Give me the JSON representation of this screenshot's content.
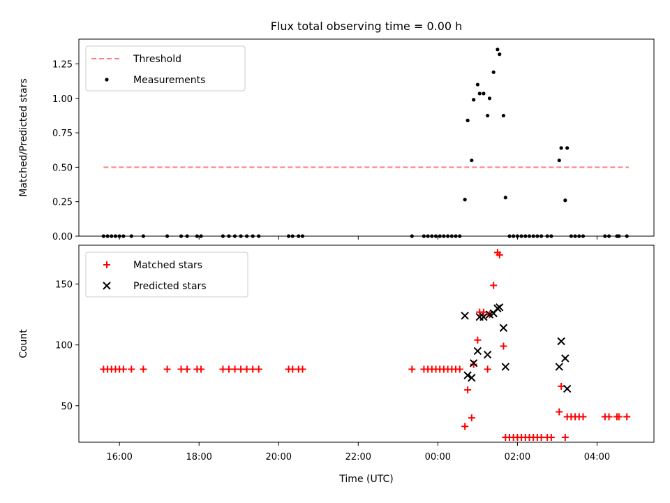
{
  "chart_data": {
    "title": "Flux total observing time = 0.00 h",
    "xlabel": "Time (UTC)",
    "x_ticks": [
      "16:00",
      "18:00",
      "20:00",
      "22:00",
      "00:00",
      "02:00",
      "04:00"
    ],
    "x_tick_hours": [
      16,
      18,
      20,
      22,
      24,
      26,
      28
    ],
    "xlim_hours": [
      14.98,
      29.43
    ],
    "panels": [
      {
        "type": "scatter",
        "ylabel": "Matched/Predicted stars",
        "ylim": [
          0,
          1.43
        ],
        "y_ticks": [
          "0.00",
          "0.25",
          "0.50",
          "0.75",
          "1.00",
          "1.25"
        ],
        "y_tick_values": [
          0,
          0.25,
          0.5,
          0.75,
          1.0,
          1.25
        ],
        "legend_position": "upper-left",
        "series": [
          {
            "name": "Threshold",
            "kind": "dashed-line",
            "color": "#ff7f7f",
            "points": [
              [
                15.6,
                0.5
              ],
              [
                28.8,
                0.5
              ]
            ]
          },
          {
            "name": "Measurements",
            "kind": "dot",
            "color": "#000000",
            "points": [
              [
                15.6,
                0
              ],
              [
                15.7,
                0
              ],
              [
                15.8,
                0
              ],
              [
                15.9,
                0
              ],
              [
                16.0,
                0
              ],
              [
                16.1,
                0
              ],
              [
                16.3,
                0
              ],
              [
                16.6,
                0
              ],
              [
                17.2,
                0
              ],
              [
                17.55,
                0
              ],
              [
                17.7,
                0
              ],
              [
                17.95,
                0
              ],
              [
                18.05,
                0
              ],
              [
                18.6,
                0
              ],
              [
                18.75,
                0
              ],
              [
                18.9,
                0
              ],
              [
                19.05,
                0
              ],
              [
                19.2,
                0
              ],
              [
                19.35,
                0
              ],
              [
                19.5,
                0
              ],
              [
                20.25,
                0
              ],
              [
                20.35,
                0
              ],
              [
                20.5,
                0
              ],
              [
                20.6,
                0
              ],
              [
                23.35,
                0
              ],
              [
                23.65,
                0
              ],
              [
                23.75,
                0
              ],
              [
                23.85,
                0
              ],
              [
                23.95,
                0
              ],
              [
                24.05,
                0
              ],
              [
                24.15,
                0
              ],
              [
                24.25,
                0
              ],
              [
                24.35,
                0
              ],
              [
                24.45,
                0
              ],
              [
                24.55,
                0
              ],
              [
                24.68,
                0.265
              ],
              [
                24.75,
                0.84
              ],
              [
                24.85,
                0.55
              ],
              [
                24.9,
                0.99
              ],
              [
                25.0,
                1.1
              ],
              [
                25.05,
                1.035
              ],
              [
                25.15,
                1.035
              ],
              [
                25.25,
                0.875
              ],
              [
                25.3,
                1.0
              ],
              [
                25.4,
                1.19
              ],
              [
                25.5,
                1.355
              ],
              [
                25.55,
                1.32
              ],
              [
                25.65,
                0.875
              ],
              [
                25.7,
                0.28
              ],
              [
                25.8,
                0
              ],
              [
                25.9,
                0
              ],
              [
                26.0,
                0
              ],
              [
                26.1,
                0
              ],
              [
                26.2,
                0
              ],
              [
                26.3,
                0
              ],
              [
                26.4,
                0
              ],
              [
                26.5,
                0
              ],
              [
                26.6,
                0
              ],
              [
                26.75,
                0
              ],
              [
                26.85,
                0
              ],
              [
                27.05,
                0.55
              ],
              [
                27.1,
                0.64
              ],
              [
                27.2,
                0.26
              ],
              [
                27.25,
                0.64
              ],
              [
                27.35,
                0
              ],
              [
                27.45,
                0
              ],
              [
                27.55,
                0
              ],
              [
                27.65,
                0
              ],
              [
                28.2,
                0
              ],
              [
                28.3,
                0
              ],
              [
                28.5,
                0
              ],
              [
                28.55,
                0
              ],
              [
                28.75,
                0
              ]
            ]
          }
        ]
      },
      {
        "type": "scatter",
        "ylabel": "Count",
        "ylim": [
          20,
          182
        ],
        "y_ticks": [
          "50",
          "100",
          "150"
        ],
        "y_tick_values": [
          50,
          100,
          150
        ],
        "legend_position": "upper-left",
        "series": [
          {
            "name": "Matched stars",
            "kind": "plus",
            "color": "#ff0000",
            "points": [
              [
                15.6,
                80
              ],
              [
                15.7,
                80
              ],
              [
                15.8,
                80
              ],
              [
                15.9,
                80
              ],
              [
                16.0,
                80
              ],
              [
                16.1,
                80
              ],
              [
                16.3,
                80
              ],
              [
                16.6,
                80
              ],
              [
                17.2,
                80
              ],
              [
                17.55,
                80
              ],
              [
                17.7,
                80
              ],
              [
                17.95,
                80
              ],
              [
                18.05,
                80
              ],
              [
                18.6,
                80
              ],
              [
                18.75,
                80
              ],
              [
                18.9,
                80
              ],
              [
                19.05,
                80
              ],
              [
                19.2,
                80
              ],
              [
                19.35,
                80
              ],
              [
                19.5,
                80
              ],
              [
                20.25,
                80
              ],
              [
                20.35,
                80
              ],
              [
                20.5,
                80
              ],
              [
                20.6,
                80
              ],
              [
                23.35,
                80
              ],
              [
                23.65,
                80
              ],
              [
                23.75,
                80
              ],
              [
                23.85,
                80
              ],
              [
                23.95,
                80
              ],
              [
                24.05,
                80
              ],
              [
                24.15,
                80
              ],
              [
                24.25,
                80
              ],
              [
                24.35,
                80
              ],
              [
                24.45,
                80
              ],
              [
                24.55,
                80
              ],
              [
                24.68,
                33
              ],
              [
                24.75,
                63
              ],
              [
                24.85,
                40
              ],
              [
                24.9,
                84
              ],
              [
                25.0,
                104
              ],
              [
                25.05,
                127
              ],
              [
                25.15,
                127
              ],
              [
                25.25,
                80
              ],
              [
                25.3,
                125
              ],
              [
                25.4,
                149
              ],
              [
                25.5,
                176
              ],
              [
                25.55,
                174
              ],
              [
                25.65,
                99
              ],
              [
                25.7,
                24
              ],
              [
                25.8,
                24
              ],
              [
                25.9,
                24
              ],
              [
                26.0,
                24
              ],
              [
                26.1,
                24
              ],
              [
                26.2,
                24
              ],
              [
                26.3,
                24
              ],
              [
                26.4,
                24
              ],
              [
                26.5,
                24
              ],
              [
                26.6,
                24
              ],
              [
                26.75,
                24
              ],
              [
                26.85,
                24
              ],
              [
                27.05,
                45
              ],
              [
                27.1,
                66
              ],
              [
                27.2,
                24
              ],
              [
                27.25,
                41
              ],
              [
                27.35,
                41
              ],
              [
                27.45,
                41
              ],
              [
                27.55,
                41
              ],
              [
                27.65,
                41
              ],
              [
                28.2,
                41
              ],
              [
                28.3,
                41
              ],
              [
                28.5,
                41
              ],
              [
                28.55,
                41
              ],
              [
                28.75,
                41
              ]
            ]
          },
          {
            "name": "Predicted stars",
            "kind": "cross",
            "color": "#000000",
            "points": [
              [
                24.68,
                124
              ],
              [
                24.75,
                75
              ],
              [
                24.85,
                73
              ],
              [
                24.9,
                85
              ],
              [
                25.0,
                95
              ],
              [
                25.05,
                123
              ],
              [
                25.15,
                123
              ],
              [
                25.25,
                92
              ],
              [
                25.3,
                125
              ],
              [
                25.4,
                126
              ],
              [
                25.5,
                130
              ],
              [
                25.55,
                131
              ],
              [
                25.65,
                114
              ],
              [
                25.7,
                82
              ],
              [
                27.05,
                82
              ],
              [
                27.1,
                103
              ],
              [
                27.2,
                89
              ],
              [
                27.25,
                64
              ]
            ]
          }
        ]
      }
    ]
  }
}
